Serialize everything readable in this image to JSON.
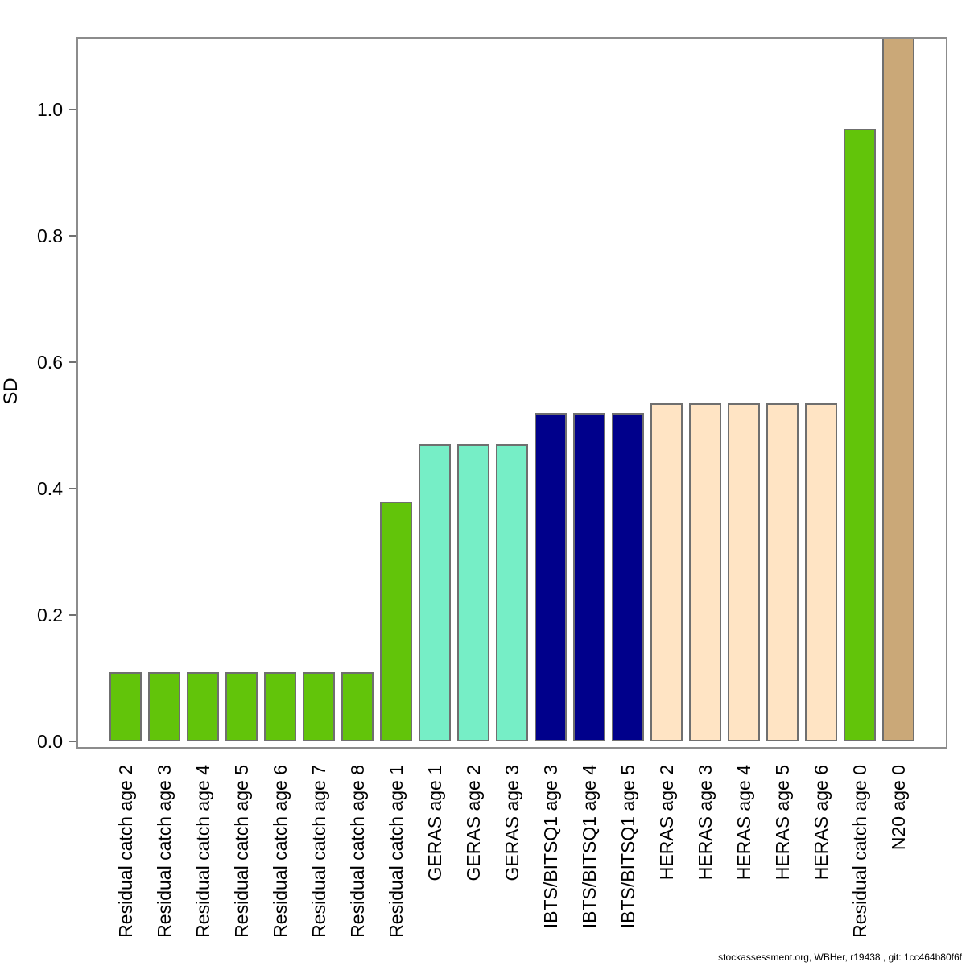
{
  "figure": {
    "ylabel": "SD",
    "footer": "stockassessment.org, WBHer, r19438 , git: 1cc464b80f6f"
  },
  "chart_data": {
    "type": "bar",
    "title": "",
    "xlabel": "",
    "ylabel": "SD",
    "ylim": [
      0,
      1.115
    ],
    "grid": false,
    "legend": "none",
    "yticks": [
      "0.0",
      "0.2",
      "0.4",
      "0.6",
      "0.8",
      "1.0"
    ],
    "categories": [
      "Residual catch age 2",
      "Residual catch age 3",
      "Residual catch age 4",
      "Residual catch age 5",
      "Residual catch age 6",
      "Residual catch age 7",
      "Residual catch age 8",
      "Residual catch age 1",
      "GERAS age 1",
      "GERAS age 2",
      "GERAS age 3",
      "IBTS/BITSQ1 age 3",
      "IBTS/BITSQ1 age 4",
      "IBTS/BITSQ1 age 5",
      "HERAS age 2",
      "HERAS age 3",
      "HERAS age 4",
      "HERAS age 5",
      "HERAS age 6",
      "Residual catch age 0",
      "N20 age 0"
    ],
    "values": [
      0.11,
      0.11,
      0.11,
      0.11,
      0.11,
      0.11,
      0.11,
      0.38,
      0.47,
      0.47,
      0.47,
      0.52,
      0.52,
      0.52,
      0.535,
      0.535,
      0.535,
      0.535,
      0.535,
      0.97,
      1.12
    ],
    "bar_colors": [
      "#62c40a",
      "#62c40a",
      "#62c40a",
      "#62c40a",
      "#62c40a",
      "#62c40a",
      "#62c40a",
      "#62c40a",
      "#76eec6",
      "#76eec6",
      "#76eec6",
      "#00008b",
      "#00008b",
      "#00008b",
      "#ffe4c4",
      "#ffe4c4",
      "#ffe4c4",
      "#ffe4c4",
      "#ffe4c4",
      "#62c40a",
      "#caa878"
    ],
    "group_colors": {
      "Residual catch": "#62c40a",
      "GERAS": "#76eec6",
      "IBTS/BITSQ1": "#00008b",
      "HERAS": "#ffe4c4",
      "N20": "#caa878"
    },
    "bar_border_color": "#6f6f6f",
    "axis_color": "#8c8c8c",
    "clipped_bars": [
      "N20 age 0"
    ]
  }
}
